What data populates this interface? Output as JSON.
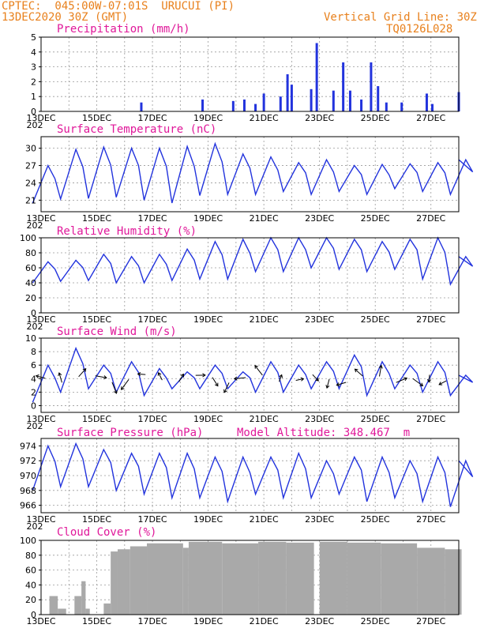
{
  "header": {
    "left_line1": "CPTEC:  045:00W-07:01S  URUCUI (PI)",
    "left_line2": "13DEC2020 30Z (GMT)",
    "right_line1": "Vertical Grid Line: 30Z",
    "right_line2": "TQ0126L028"
  },
  "colors": {
    "header": "#e8801c",
    "panel_title": "#e0189a",
    "series_line": "#2233dd",
    "cloud_fill": "#a9a9a9"
  },
  "chart_data": [
    {
      "type": "bar",
      "title": "Precipitation (mm/h)",
      "x_tick_labels": [
        "13DEC",
        "15DEC",
        "17DEC",
        "19DEC",
        "21DEC",
        "23DEC",
        "25DEC",
        "27DEC"
      ],
      "year_label": "202",
      "ylim": [
        0,
        5
      ],
      "y_ticks": [
        0,
        1,
        2,
        3,
        4,
        5
      ],
      "grid": true,
      "events": [
        {
          "day": 16.6,
          "value": 0.6
        },
        {
          "day": 18.8,
          "value": 0.8
        },
        {
          "day": 19.9,
          "value": 0.7
        },
        {
          "day": 20.3,
          "value": 0.8
        },
        {
          "day": 20.7,
          "value": 0.5
        },
        {
          "day": 21.0,
          "value": 1.2
        },
        {
          "day": 21.6,
          "value": 1.0
        },
        {
          "day": 21.85,
          "value": 2.5
        },
        {
          "day": 22.0,
          "value": 1.8
        },
        {
          "day": 22.7,
          "value": 1.5
        },
        {
          "day": 22.9,
          "value": 4.6
        },
        {
          "day": 23.5,
          "value": 1.4
        },
        {
          "day": 23.85,
          "value": 3.3
        },
        {
          "day": 24.1,
          "value": 1.4
        },
        {
          "day": 24.5,
          "value": 0.8
        },
        {
          "day": 24.85,
          "value": 3.3
        },
        {
          "day": 25.1,
          "value": 1.7
        },
        {
          "day": 25.4,
          "value": 0.6
        },
        {
          "day": 25.95,
          "value": 0.6
        },
        {
          "day": 26.85,
          "value": 1.2
        },
        {
          "day": 27.05,
          "value": 0.5
        },
        {
          "day": 28.0,
          "value": 1.3
        }
      ]
    },
    {
      "type": "line",
      "title": "Surface Temperature (nC)",
      "x_tick_labels": [
        "13DEC",
        "15DEC",
        "17DEC",
        "19DEC",
        "21DEC",
        "23DEC",
        "25DEC",
        "27DEC"
      ],
      "year_label": "202",
      "ylim": [
        19,
        32
      ],
      "y_ticks": [
        21,
        24,
        27,
        30
      ],
      "grid": true,
      "daily_max": [
        27.0,
        29.8,
        30.2,
        30.0,
        30.0,
        30.3,
        30.8,
        29.0,
        28.5,
        27.5,
        28.0,
        27.0,
        27.2,
        27.3,
        27.5,
        28.0
      ],
      "daily_min": [
        20.5,
        21.2,
        21.3,
        21.5,
        21.0,
        20.5,
        21.8,
        22.0,
        22.0,
        22.5,
        22.0,
        22.5,
        22.0,
        23.0,
        22.5,
        22.0
      ]
    },
    {
      "type": "line",
      "title": "Relative Humidity (%)",
      "x_tick_labels": [
        "13DEC",
        "15DEC",
        "17DEC",
        "19DEC",
        "21DEC",
        "23DEC",
        "25DEC",
        "27DEC"
      ],
      "year_label": "202",
      "ylim": [
        0,
        100
      ],
      "y_ticks": [
        0,
        20,
        40,
        60,
        80,
        100
      ],
      "grid": true,
      "daily_max": [
        68,
        70,
        78,
        75,
        78,
        85,
        95,
        98,
        100,
        100,
        100,
        98,
        95,
        98,
        100,
        75
      ],
      "daily_min": [
        40,
        42,
        43,
        40,
        40,
        43,
        45,
        45,
        55,
        55,
        60,
        58,
        55,
        58,
        45,
        38
      ]
    },
    {
      "type": "line",
      "title": "Surface Wind (m/s)",
      "x_tick_labels": [
        "13DEC",
        "15DEC",
        "17DEC",
        "19DEC",
        "21DEC",
        "23DEC",
        "25DEC",
        "27DEC"
      ],
      "year_label": "202",
      "ylim": [
        -1,
        10
      ],
      "y_ticks": [
        0,
        2,
        4,
        6,
        8,
        10
      ],
      "grid": true,
      "daily_max": [
        6.0,
        8.5,
        6.0,
        6.5,
        5.5,
        5.0,
        6.0,
        5.0,
        6.5,
        6.0,
        6.5,
        7.5,
        6.5,
        6.0,
        6.5,
        4.5
      ],
      "daily_min": [
        0.5,
        2.0,
        2.5,
        2.0,
        1.5,
        2.5,
        2.5,
        2.5,
        2.0,
        2.0,
        2.5,
        2.5,
        1.5,
        2.5,
        2.0,
        1.5
      ],
      "wind_vectors": "black arrows (direction/speed)"
    },
    {
      "type": "line",
      "title": "Surface Pressure (hPa)",
      "annotation": "Model Altitude: 348.467  m",
      "x_tick_labels": [
        "13DEC",
        "15DEC",
        "17DEC",
        "19DEC",
        "21DEC",
        "23DEC",
        "25DEC",
        "27DEC"
      ],
      "year_label": "202",
      "ylim": [
        965,
        975
      ],
      "y_ticks": [
        966,
        968,
        970,
        972,
        974
      ],
      "grid": true,
      "daily_max": [
        974.0,
        974.3,
        973.5,
        973.0,
        973.0,
        973.0,
        972.5,
        972.5,
        972.5,
        973.0,
        972.0,
        972.5,
        972.5,
        972.0,
        972.5,
        972.0
      ],
      "daily_min": [
        968.0,
        968.5,
        968.5,
        968.0,
        967.5,
        967.0,
        967.0,
        966.5,
        967.5,
        967.0,
        967.0,
        967.5,
        966.5,
        967.0,
        966.5,
        965.8
      ]
    },
    {
      "type": "area",
      "title": "Cloud Cover (%)",
      "x_tick_labels": [
        "13DEC",
        "15DEC",
        "17DEC",
        "19DEC",
        "21DEC",
        "23DEC",
        "25DEC",
        "27DEC"
      ],
      "ylim": [
        0,
        100
      ],
      "y_ticks": [
        0,
        20,
        40,
        60,
        80,
        100
      ],
      "grid": true,
      "segments": [
        {
          "from_day": 13.0,
          "to_day": 13.3,
          "value": 0
        },
        {
          "from_day": 13.3,
          "to_day": 13.6,
          "value": 25
        },
        {
          "from_day": 13.6,
          "to_day": 13.9,
          "value": 8
        },
        {
          "from_day": 13.9,
          "to_day": 14.2,
          "value": 0
        },
        {
          "from_day": 14.2,
          "to_day": 14.45,
          "value": 25
        },
        {
          "from_day": 14.45,
          "to_day": 14.6,
          "value": 45
        },
        {
          "from_day": 14.6,
          "to_day": 14.75,
          "value": 8
        },
        {
          "from_day": 14.75,
          "to_day": 15.25,
          "value": 0
        },
        {
          "from_day": 15.25,
          "to_day": 15.5,
          "value": 15
        },
        {
          "from_day": 15.5,
          "to_day": 15.75,
          "value": 85
        },
        {
          "from_day": 15.75,
          "to_day": 16.2,
          "value": 88
        },
        {
          "from_day": 16.2,
          "to_day": 16.8,
          "value": 92
        },
        {
          "from_day": 16.8,
          "to_day": 18.1,
          "value": 96
        },
        {
          "from_day": 18.1,
          "to_day": 18.3,
          "value": 90
        },
        {
          "from_day": 18.3,
          "to_day": 19.5,
          "value": 98
        },
        {
          "from_day": 19.5,
          "to_day": 20.8,
          "value": 96
        },
        {
          "from_day": 20.8,
          "to_day": 21.8,
          "value": 98
        },
        {
          "from_day": 21.8,
          "to_day": 22.8,
          "value": 97
        },
        {
          "from_day": 22.8,
          "to_day": 23.0,
          "value": 0
        },
        {
          "from_day": 23.0,
          "to_day": 24.0,
          "value": 98
        },
        {
          "from_day": 24.0,
          "to_day": 25.2,
          "value": 97
        },
        {
          "from_day": 25.2,
          "to_day": 26.5,
          "value": 96
        },
        {
          "from_day": 26.5,
          "to_day": 27.5,
          "value": 90
        },
        {
          "from_day": 27.5,
          "to_day": 28.1,
          "value": 88
        }
      ]
    }
  ]
}
